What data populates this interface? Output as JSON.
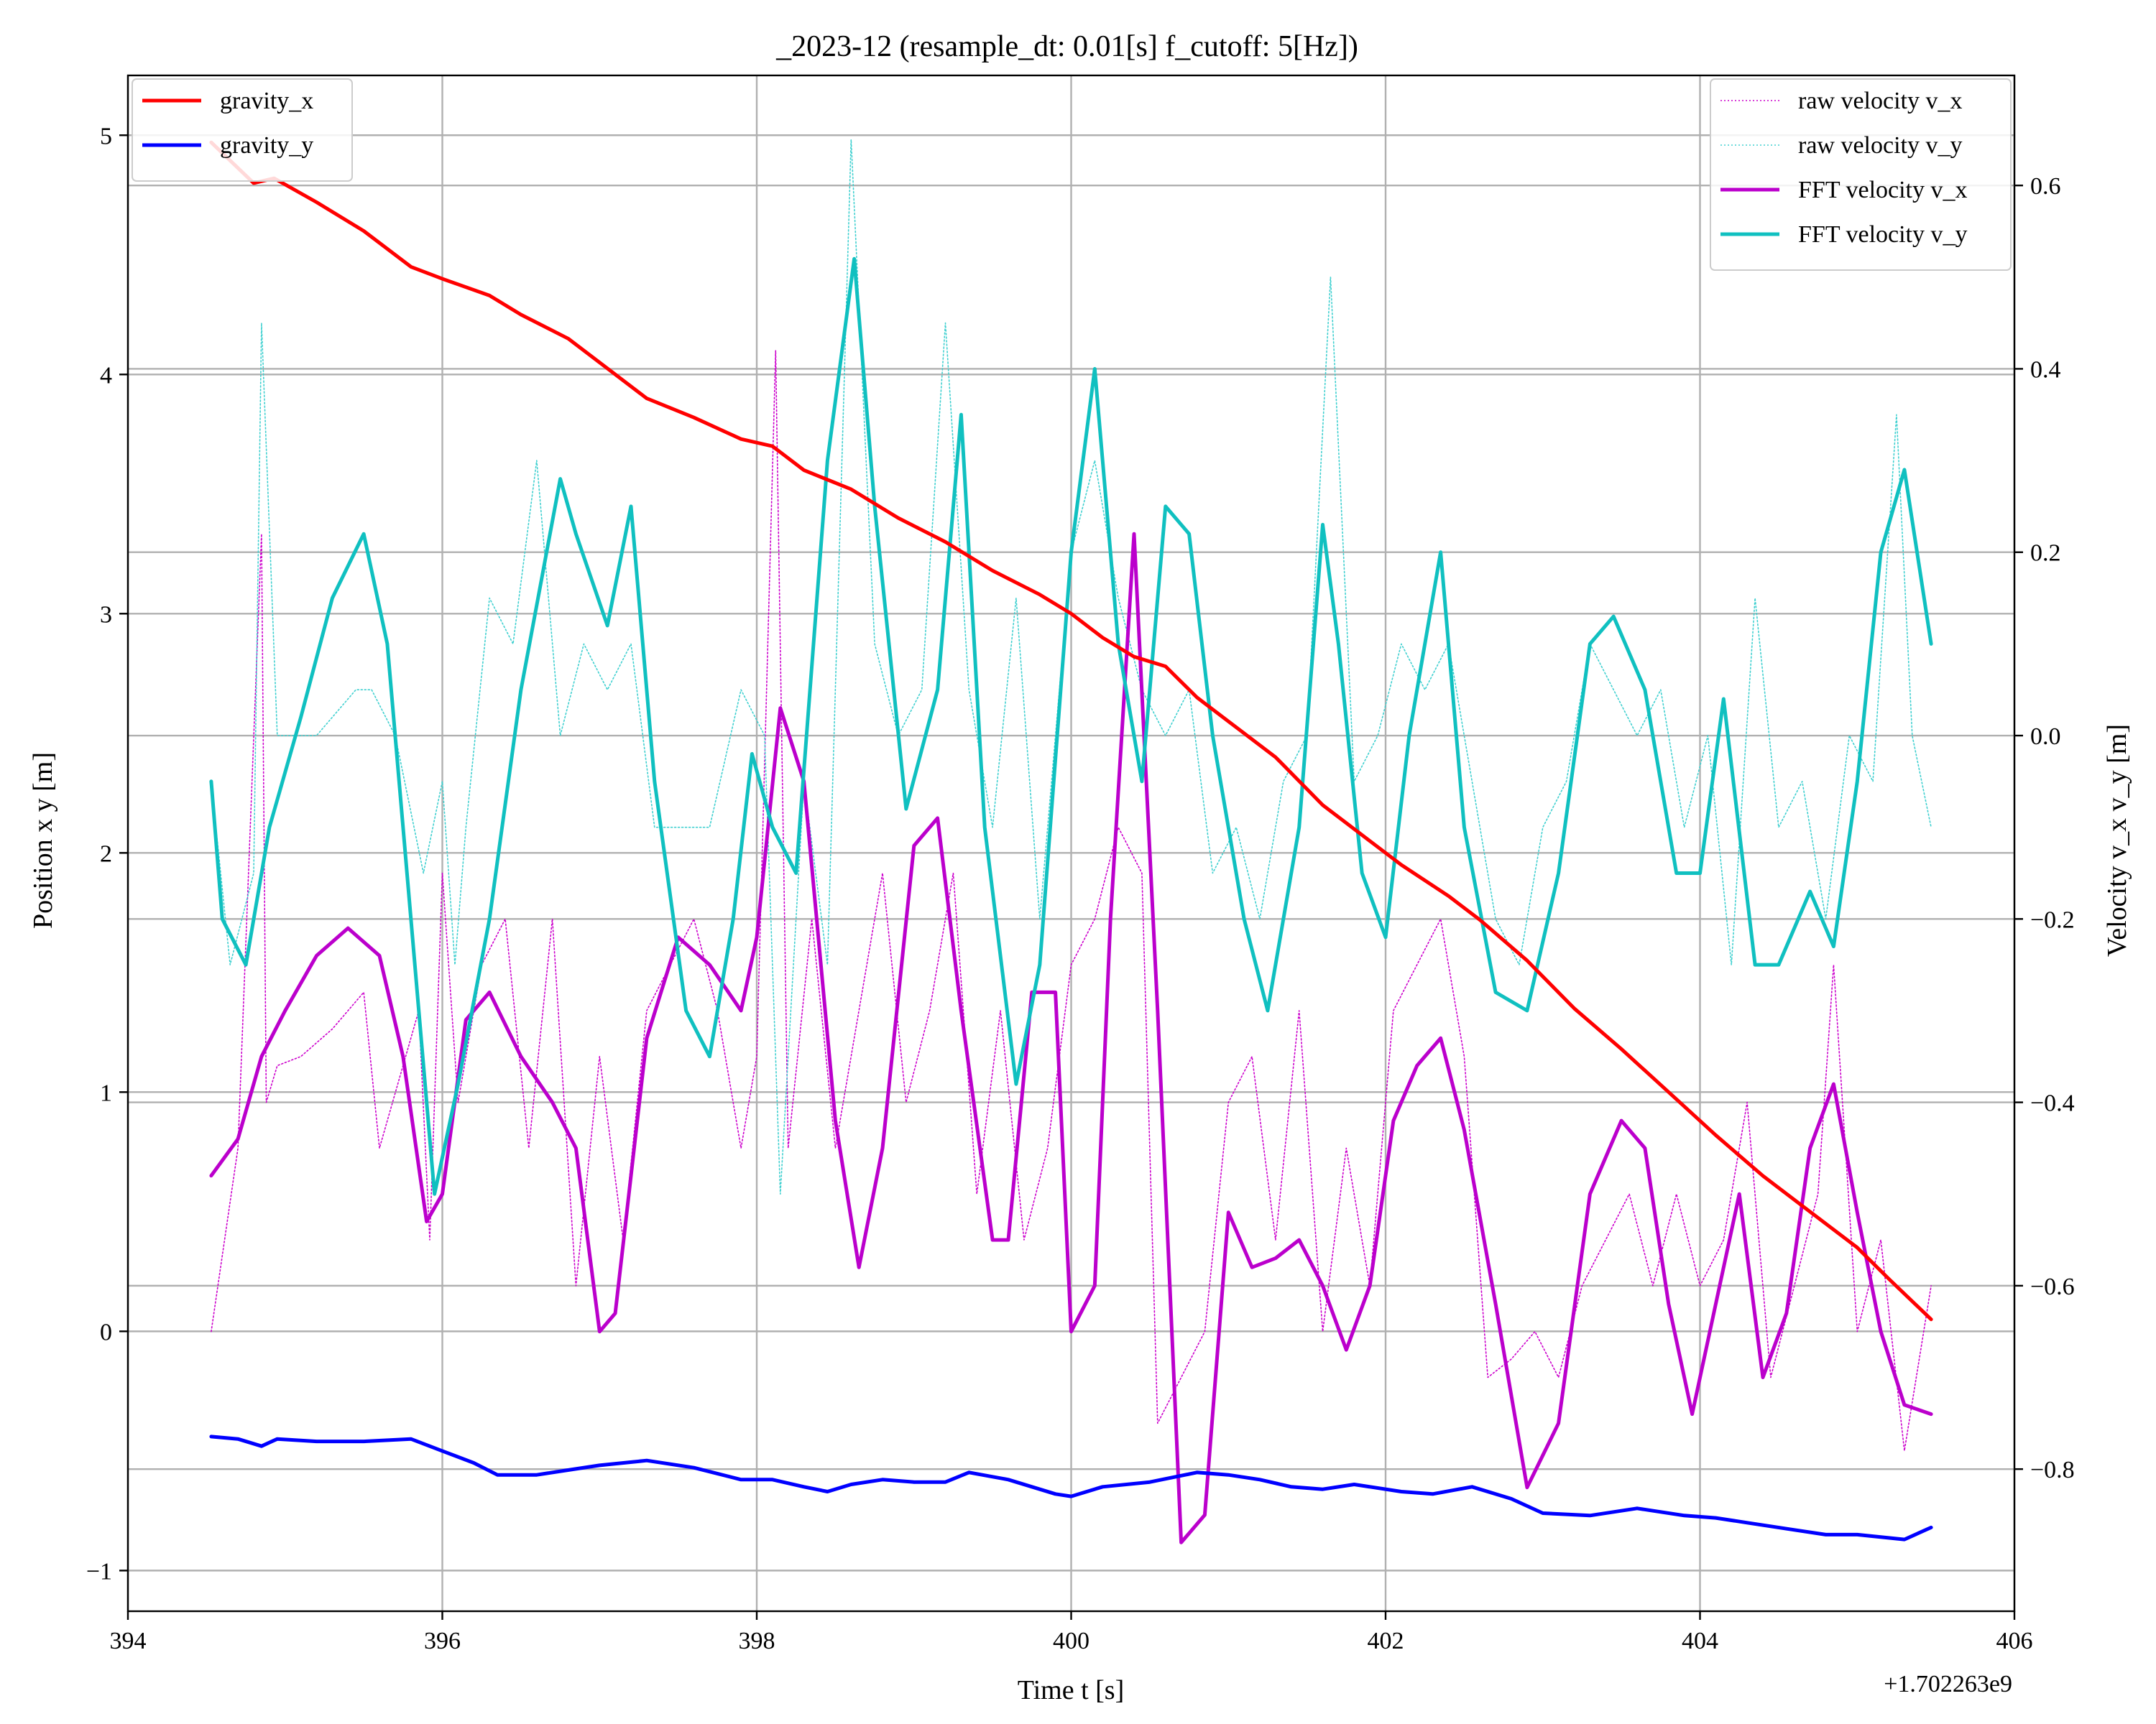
{
  "chart_data": {
    "type": "line",
    "title": "_2023-12 (resample_dt: 0.01[s] f_cutoff: 5[Hz])",
    "xlabel": "Time t [s]",
    "ylabel_left": "Position x y [m]",
    "ylabel_right": "Velocity v_x v_y [m]",
    "x_offset_text": "+1.702263e9",
    "x_ticks": [
      "394",
      "396",
      "398",
      "400",
      "402",
      "404",
      "406"
    ],
    "y_left_ticks": [
      "−1",
      "0",
      "1",
      "2",
      "3",
      "4",
      "5"
    ],
    "y_right_ticks": [
      "−0.8",
      "−0.6",
      "−0.4",
      "−0.2",
      "0.0",
      "0.2",
      "0.4",
      "0.6"
    ],
    "xlim": [
      394,
      406
    ],
    "ylim_left": [
      -1.17,
      5.25
    ],
    "ylim_right": [
      -0.955,
      0.72
    ],
    "grid": true,
    "legend_left_position": "upper left",
    "legend_right_position": "upper right",
    "left_series": [
      {
        "name": "gravity_x",
        "color": "#ff0000",
        "x": [
          394.53,
          394.8,
          394.93,
          395.2,
          395.5,
          395.8,
          396.0,
          396.3,
          396.5,
          396.8,
          397.0,
          397.3,
          397.6,
          397.9,
          398.1,
          398.3,
          398.6,
          398.9,
          399.2,
          399.5,
          399.8,
          400.0,
          400.2,
          400.4,
          400.6,
          400.8,
          401.0,
          401.3,
          401.6,
          401.9,
          402.1,
          402.4,
          402.6,
          402.9,
          403.2,
          403.5,
          403.8,
          404.1,
          404.4,
          404.7,
          405.0,
          405.2,
          405.47
        ],
        "values": [
          4.97,
          4.8,
          4.82,
          4.72,
          4.6,
          4.45,
          4.4,
          4.33,
          4.25,
          4.15,
          4.05,
          3.9,
          3.82,
          3.73,
          3.7,
          3.6,
          3.52,
          3.4,
          3.3,
          3.18,
          3.08,
          3.0,
          2.9,
          2.82,
          2.78,
          2.65,
          2.55,
          2.4,
          2.2,
          2.05,
          1.95,
          1.82,
          1.72,
          1.55,
          1.35,
          1.18,
          1.0,
          0.82,
          0.65,
          0.5,
          0.35,
          0.22,
          0.05
        ]
      },
      {
        "name": "gravity_y",
        "color": "#0000ff",
        "x": [
          394.53,
          394.7,
          394.85,
          394.95,
          395.2,
          395.5,
          395.8,
          396.0,
          396.2,
          396.35,
          396.6,
          396.8,
          397.0,
          397.3,
          397.6,
          397.9,
          398.1,
          398.3,
          398.45,
          398.6,
          398.8,
          399.0,
          399.2,
          399.35,
          399.6,
          399.9,
          400.0,
          400.2,
          400.5,
          400.8,
          401.0,
          401.2,
          401.4,
          401.6,
          401.8,
          402.1,
          402.3,
          402.55,
          402.8,
          403.0,
          403.3,
          403.6,
          403.9,
          404.1,
          404.3,
          404.6,
          404.8,
          405.0,
          405.3,
          405.47
        ],
        "values": [
          -0.44,
          -0.45,
          -0.48,
          -0.45,
          -0.46,
          -0.46,
          -0.45,
          -0.5,
          -0.55,
          -0.6,
          -0.6,
          -0.58,
          -0.56,
          -0.54,
          -0.57,
          -0.62,
          -0.62,
          -0.65,
          -0.67,
          -0.64,
          -0.62,
          -0.63,
          -0.63,
          -0.59,
          -0.62,
          -0.68,
          -0.69,
          -0.65,
          -0.63,
          -0.59,
          -0.6,
          -0.62,
          -0.65,
          -0.66,
          -0.64,
          -0.67,
          -0.68,
          -0.65,
          -0.7,
          -0.76,
          -0.77,
          -0.74,
          -0.77,
          -0.78,
          -0.8,
          -0.83,
          -0.85,
          -0.85,
          -0.87,
          -0.82
        ]
      }
    ],
    "right_series": [
      {
        "name": "raw velocity v_x",
        "color": "#cc00cc",
        "style": "dotted",
        "x": [
          394.53,
          394.7,
          394.85,
          394.88,
          394.95,
          395.1,
          395.3,
          395.5,
          395.6,
          395.85,
          395.92,
          396.0,
          396.1,
          396.25,
          396.4,
          396.55,
          396.7,
          396.85,
          397.0,
          397.15,
          397.3,
          397.45,
          397.6,
          397.75,
          397.9,
          398.0,
          398.12,
          398.2,
          398.35,
          398.5,
          398.65,
          398.8,
          398.95,
          399.1,
          399.25,
          399.4,
          399.55,
          399.7,
          399.85,
          400.0,
          400.15,
          400.3,
          400.45,
          400.55,
          400.7,
          400.85,
          401.0,
          401.15,
          401.3,
          401.45,
          401.6,
          401.75,
          401.9,
          402.05,
          402.2,
          402.35,
          402.5,
          402.65,
          402.8,
          402.95,
          403.1,
          403.25,
          403.4,
          403.55,
          403.7,
          403.85,
          404.0,
          404.15,
          404.3,
          404.45,
          404.6,
          404.75,
          404.85,
          405.0,
          405.15,
          405.3,
          405.47
        ],
        "values": [
          -0.65,
          -0.45,
          0.22,
          -0.4,
          -0.36,
          -0.35,
          -0.32,
          -0.28,
          -0.45,
          -0.3,
          -0.55,
          -0.15,
          -0.4,
          -0.25,
          -0.2,
          -0.45,
          -0.2,
          -0.6,
          -0.35,
          -0.55,
          -0.3,
          -0.25,
          -0.2,
          -0.3,
          -0.45,
          -0.35,
          0.42,
          -0.45,
          -0.2,
          -0.45,
          -0.3,
          -0.15,
          -0.4,
          -0.3,
          -0.15,
          -0.5,
          -0.3,
          -0.55,
          -0.45,
          -0.25,
          -0.2,
          -0.1,
          -0.15,
          -0.75,
          -0.7,
          -0.65,
          -0.4,
          -0.35,
          -0.55,
          -0.3,
          -0.65,
          -0.45,
          -0.6,
          -0.3,
          -0.25,
          -0.2,
          -0.35,
          -0.7,
          -0.68,
          -0.65,
          -0.7,
          -0.6,
          -0.55,
          -0.5,
          -0.6,
          -0.5,
          -0.6,
          -0.55,
          -0.4,
          -0.7,
          -0.6,
          -0.5,
          -0.25,
          -0.65,
          -0.55,
          -0.78,
          -0.6
        ]
      },
      {
        "name": "raw velocity v_y",
        "color": "#40d0d0",
        "style": "dotted",
        "x": [
          394.53,
          394.65,
          394.8,
          394.85,
          394.95,
          395.2,
          395.45,
          395.55,
          395.7,
          395.88,
          396.0,
          396.08,
          396.15,
          396.3,
          396.45,
          396.6,
          396.75,
          396.9,
          397.05,
          397.2,
          397.35,
          397.5,
          397.7,
          397.9,
          398.05,
          398.15,
          398.3,
          398.45,
          398.6,
          398.75,
          398.9,
          399.05,
          399.2,
          399.35,
          399.5,
          399.65,
          399.8,
          400.0,
          400.15,
          400.3,
          400.45,
          400.6,
          400.75,
          400.9,
          401.05,
          401.2,
          401.35,
          401.5,
          401.65,
          401.8,
          401.95,
          402.1,
          402.25,
          402.4,
          402.55,
          402.7,
          402.85,
          403.0,
          403.15,
          403.3,
          403.45,
          403.6,
          403.75,
          403.9,
          404.05,
          404.2,
          404.35,
          404.5,
          404.65,
          404.8,
          404.95,
          405.1,
          405.25,
          405.35,
          405.47
        ],
        "values": [
          -0.05,
          -0.25,
          -0.15,
          0.45,
          0.0,
          0.0,
          0.05,
          0.05,
          0.0,
          -0.15,
          -0.05,
          -0.25,
          -0.1,
          0.15,
          0.1,
          0.3,
          0.0,
          0.1,
          0.05,
          0.1,
          -0.1,
          -0.1,
          -0.1,
          0.05,
          0.0,
          -0.5,
          -0.05,
          -0.25,
          0.65,
          0.1,
          0.0,
          0.05,
          0.45,
          0.05,
          -0.1,
          0.15,
          -0.2,
          0.2,
          0.3,
          0.15,
          0.05,
          0.0,
          0.05,
          -0.15,
          -0.1,
          -0.2,
          -0.05,
          0.0,
          0.5,
          -0.05,
          0.0,
          0.1,
          0.05,
          0.1,
          -0.05,
          -0.2,
          -0.25,
          -0.1,
          -0.05,
          0.1,
          0.05,
          0.0,
          0.05,
          -0.1,
          0.0,
          -0.25,
          0.15,
          -0.1,
          -0.05,
          -0.2,
          0.0,
          -0.05,
          0.35,
          0.0,
          -0.1
        ]
      },
      {
        "name": "FFT velocity v_x",
        "color": "#bb00cc",
        "style": "solid",
        "x": [
          394.53,
          394.7,
          394.85,
          395.0,
          395.2,
          395.4,
          395.6,
          395.75,
          395.9,
          396.0,
          396.15,
          396.3,
          396.5,
          396.7,
          396.85,
          397.0,
          397.1,
          397.3,
          397.5,
          397.7,
          397.9,
          398.0,
          398.15,
          398.3,
          398.5,
          398.65,
          398.8,
          399.0,
          399.15,
          399.3,
          399.5,
          399.6,
          399.75,
          399.9,
          400.0,
          400.15,
          400.25,
          400.4,
          400.55,
          400.7,
          400.85,
          401.0,
          401.15,
          401.3,
          401.45,
          401.6,
          401.75,
          401.9,
          402.05,
          402.2,
          402.35,
          402.5,
          402.7,
          402.9,
          403.1,
          403.3,
          403.5,
          403.65,
          403.8,
          403.95,
          404.1,
          404.25,
          404.4,
          404.55,
          404.7,
          404.85,
          405.0,
          405.15,
          405.3,
          405.47
        ],
        "values": [
          -0.48,
          -0.44,
          -0.35,
          -0.3,
          -0.24,
          -0.21,
          -0.24,
          -0.35,
          -0.53,
          -0.5,
          -0.31,
          -0.28,
          -0.35,
          -0.4,
          -0.45,
          -0.65,
          -0.63,
          -0.33,
          -0.22,
          -0.25,
          -0.3,
          -0.22,
          0.03,
          -0.05,
          -0.42,
          -0.58,
          -0.45,
          -0.12,
          -0.09,
          -0.3,
          -0.55,
          -0.55,
          -0.28,
          -0.28,
          -0.65,
          -0.6,
          -0.2,
          0.22,
          -0.3,
          -0.88,
          -0.85,
          -0.52,
          -0.58,
          -0.57,
          -0.55,
          -0.6,
          -0.67,
          -0.6,
          -0.42,
          -0.36,
          -0.33,
          -0.43,
          -0.62,
          -0.82,
          -0.75,
          -0.5,
          -0.42,
          -0.45,
          -0.62,
          -0.74,
          -0.62,
          -0.5,
          -0.7,
          -0.63,
          -0.45,
          -0.38,
          -0.52,
          -0.65,
          -0.73,
          -0.74
        ]
      },
      {
        "name": "FFT velocity v_y",
        "color": "#10c0c0",
        "style": "solid",
        "x": [
          394.53,
          394.6,
          394.75,
          394.9,
          395.1,
          395.3,
          395.5,
          395.65,
          395.8,
          395.95,
          396.1,
          396.3,
          396.5,
          396.75,
          396.85,
          397.05,
          397.2,
          397.35,
          397.55,
          397.7,
          397.85,
          397.97,
          398.1,
          398.25,
          398.45,
          398.62,
          398.75,
          398.95,
          399.15,
          399.3,
          399.45,
          399.65,
          399.8,
          400.0,
          400.15,
          400.3,
          400.45,
          400.6,
          400.75,
          400.9,
          401.1,
          401.25,
          401.45,
          401.6,
          401.7,
          401.85,
          402.0,
          402.15,
          402.35,
          402.5,
          402.7,
          402.9,
          403.1,
          403.3,
          403.45,
          403.65,
          403.85,
          404.0,
          404.15,
          404.35,
          404.5,
          404.7,
          404.85,
          405.0,
          405.15,
          405.3,
          405.47
        ],
        "values": [
          -0.05,
          -0.2,
          -0.25,
          -0.1,
          0.02,
          0.15,
          0.22,
          0.1,
          -0.2,
          -0.5,
          -0.38,
          -0.2,
          0.05,
          0.28,
          0.22,
          0.12,
          0.25,
          -0.05,
          -0.3,
          -0.35,
          -0.2,
          -0.02,
          -0.1,
          -0.15,
          0.3,
          0.52,
          0.25,
          -0.08,
          0.05,
          0.35,
          -0.1,
          -0.38,
          -0.25,
          0.2,
          0.4,
          0.1,
          -0.05,
          0.25,
          0.22,
          0.0,
          -0.2,
          -0.3,
          -0.1,
          0.23,
          0.1,
          -0.15,
          -0.22,
          0.0,
          0.2,
          -0.1,
          -0.28,
          -0.3,
          -0.15,
          0.1,
          0.13,
          0.05,
          -0.15,
          -0.15,
          0.04,
          -0.25,
          -0.25,
          -0.17,
          -0.23,
          -0.05,
          0.2,
          0.29,
          0.1
        ]
      }
    ]
  }
}
